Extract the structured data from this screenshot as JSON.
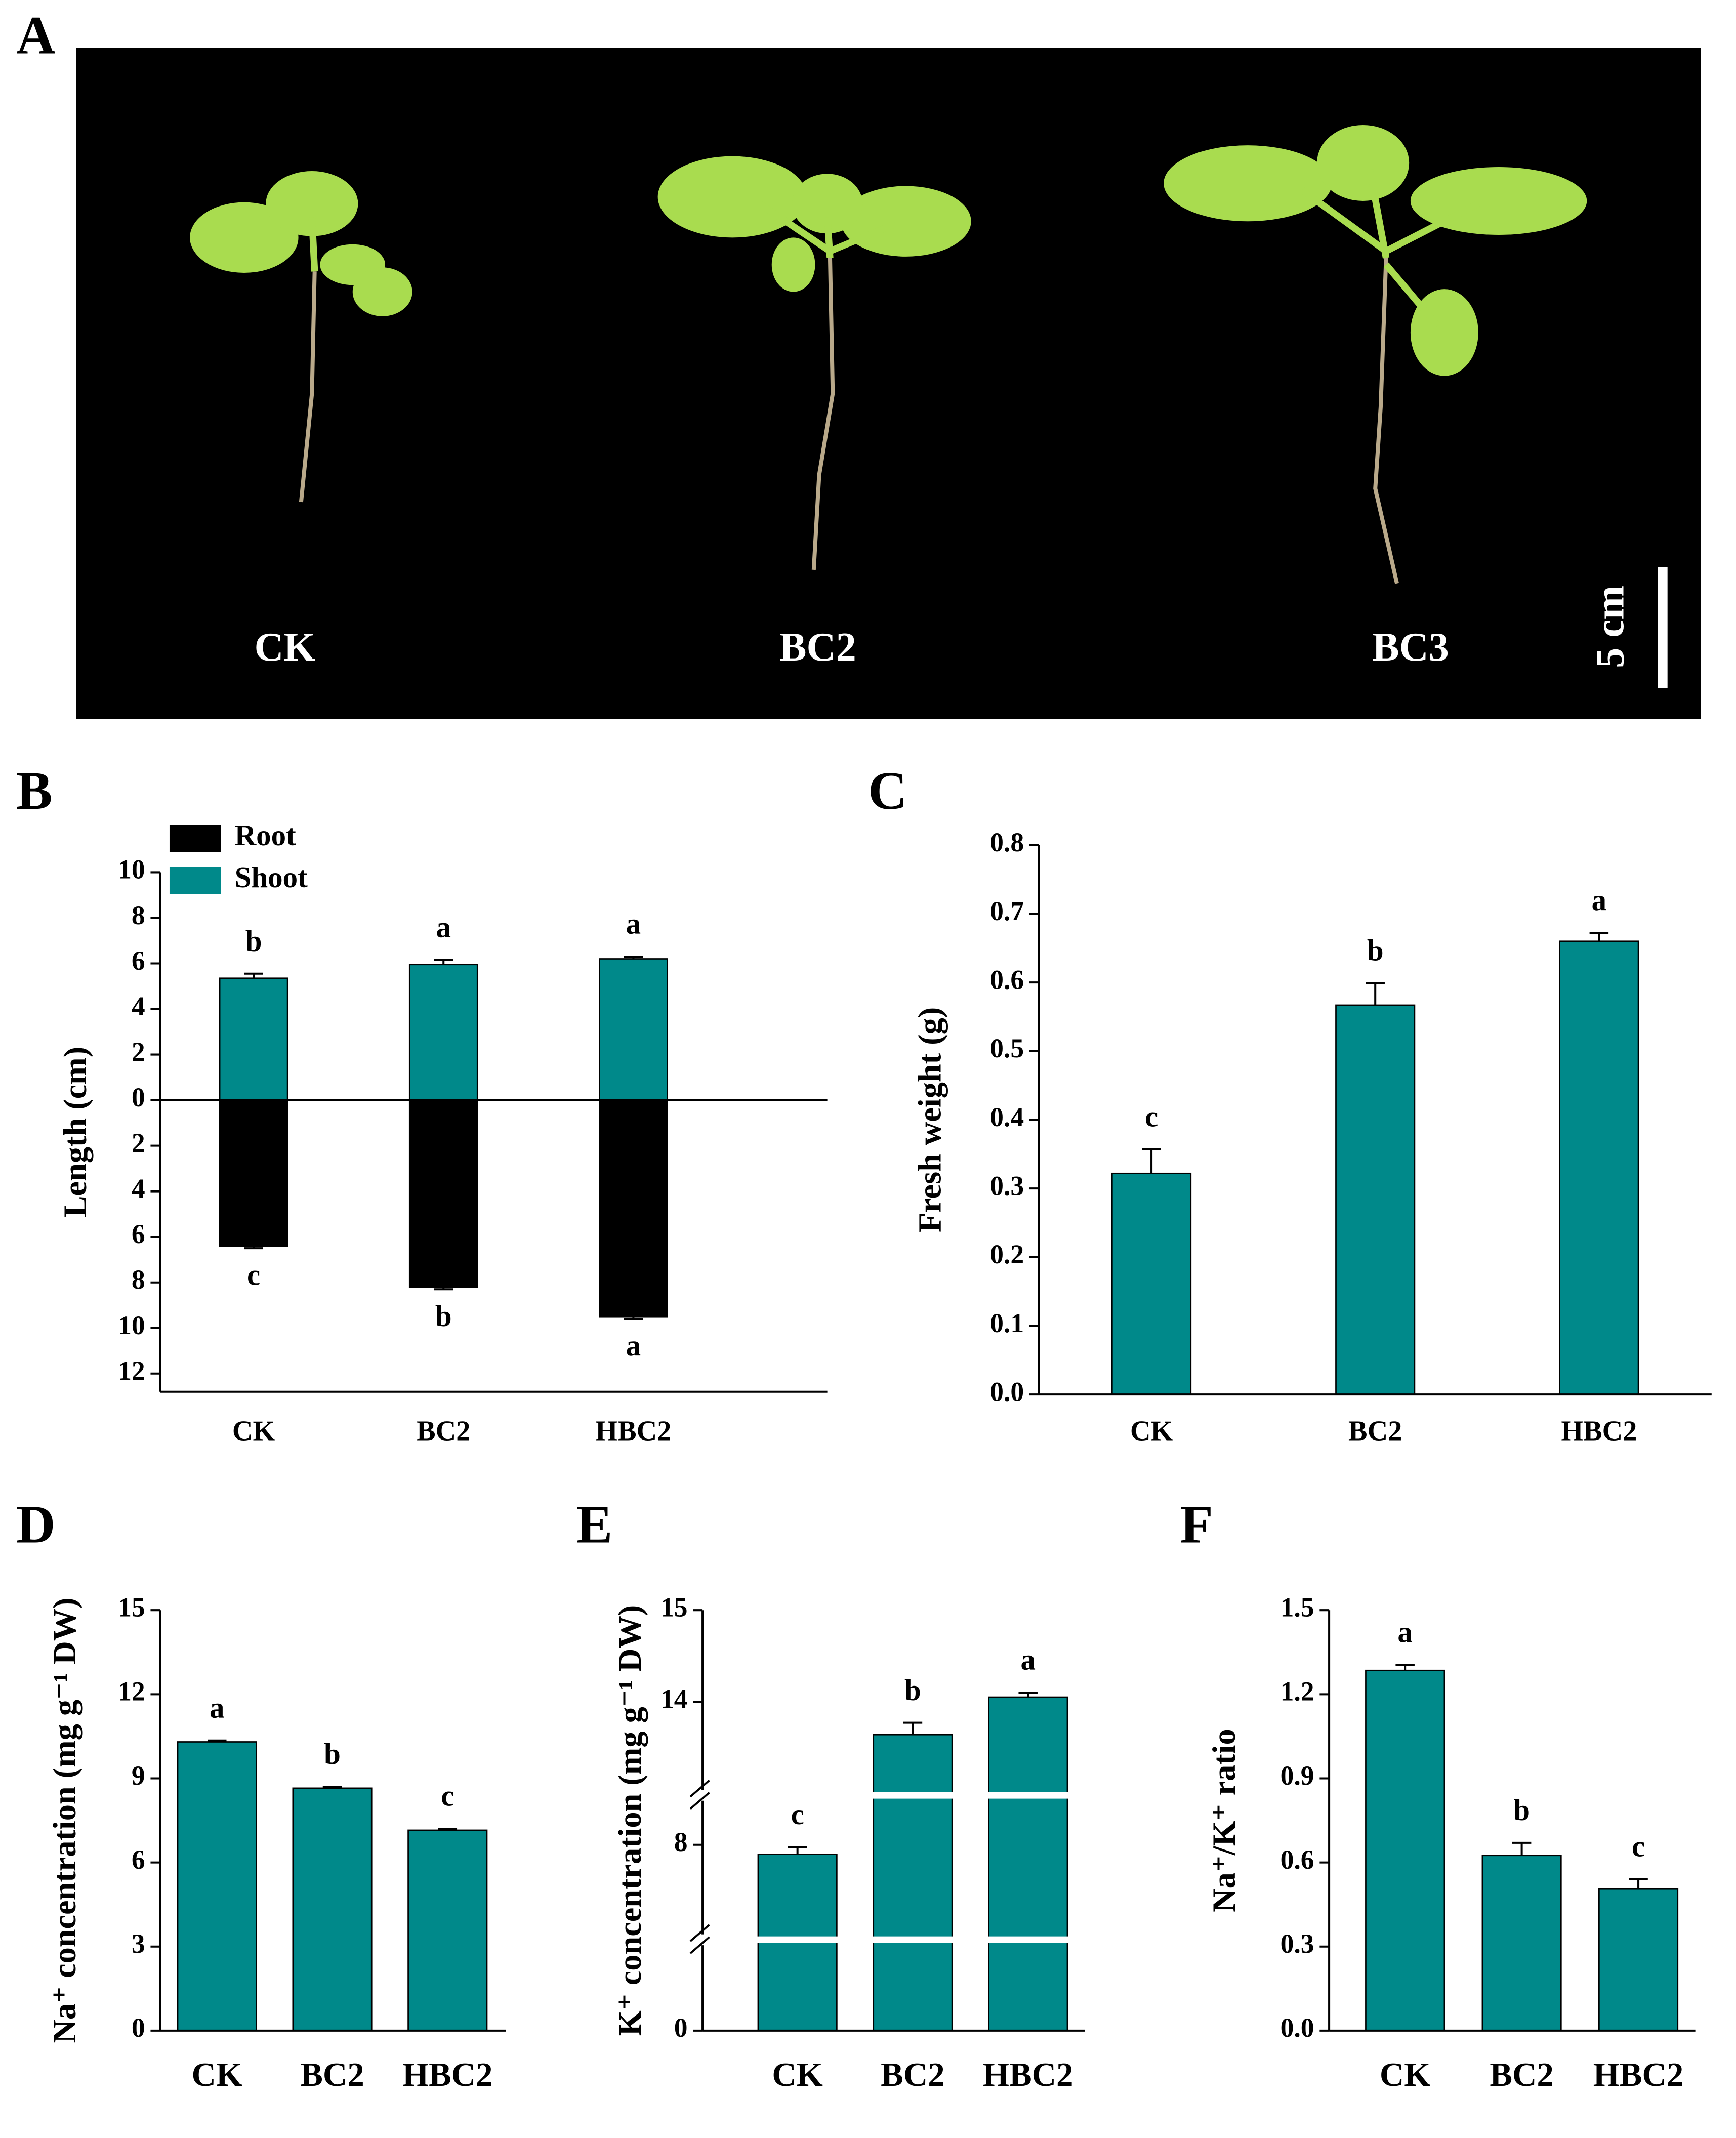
{
  "photo": {
    "panel": "A",
    "labels": [
      "CK",
      "BC2",
      "BC3"
    ],
    "scale_bar": "5 cm"
  },
  "chart_data": [
    {
      "type": "bar",
      "panel": "B",
      "ylabel": "Length (cm)",
      "categories": [
        "CK",
        "BC2",
        "HBC2"
      ],
      "ylim": [
        -12.8,
        10
      ],
      "yticks": [
        10,
        8,
        6,
        4,
        2,
        0,
        {
          "value": -2,
          "label": "2"
        },
        {
          "value": -4,
          "label": "4"
        },
        {
          "value": -6,
          "label": "6"
        },
        {
          "value": -8,
          "label": "8"
        },
        {
          "value": -10,
          "label": "10"
        },
        {
          "value": -12,
          "label": "12"
        }
      ],
      "legend": "upper left",
      "zero_line": true,
      "series": [
        {
          "name": "Root",
          "color": "#000000",
          "values": [
            -6.4,
            -8.2,
            -9.5
          ],
          "errors": [
            0.1,
            0.1,
            0.1
          ],
          "annotations": [
            "c",
            "b",
            "a"
          ]
        },
        {
          "name": "Shoot",
          "color": "#00898a",
          "values": [
            5.35,
            5.95,
            6.2
          ],
          "errors": [
            0.2,
            0.2,
            0.1
          ],
          "annotations": [
            "b",
            "a",
            "a"
          ]
        }
      ]
    },
    {
      "type": "bar",
      "panel": "C",
      "ylabel": "Fresh weight (g)",
      "categories": [
        "CK",
        "BC2",
        "HBC2"
      ],
      "values": [
        0.322,
        0.567,
        0.66
      ],
      "errors": [
        0.035,
        0.032,
        0.012
      ],
      "annotations": [
        "c",
        "b",
        "a"
      ],
      "color": "#00898a",
      "ylim": [
        0,
        0.8
      ],
      "yticks": [
        {
          "value": 0,
          "label": "0.0"
        },
        0.1,
        0.2,
        0.3,
        0.4,
        0.5,
        0.6,
        0.7,
        0.8
      ]
    },
    {
      "type": "bar",
      "panel": "D",
      "ylabel": "Na⁺ concentration (mg g⁻¹ DW)",
      "categories": [
        "CK",
        "BC2",
        "HBC2"
      ],
      "values": [
        10.3,
        8.65,
        7.15
      ],
      "errors": [
        0.05,
        0.05,
        0.05
      ],
      "annotations": [
        "a",
        "b",
        "c"
      ],
      "color": "#00898a",
      "ylim": [
        0,
        15
      ],
      "yticks": [
        0,
        3,
        6,
        9,
        12,
        15
      ]
    },
    {
      "type": "bar",
      "panel": "E",
      "ylabel": "K⁺ concentration (mg g⁻¹ DW)",
      "categories": [
        "CK",
        "BC2",
        "HBC2"
      ],
      "values": [
        7.8,
        13.64,
        14.05
      ],
      "errors": [
        0.15,
        0.13,
        0.05
      ],
      "annotations": [
        "c",
        "b",
        "a"
      ],
      "color": "#00898a",
      "ylim": [
        0,
        15
      ],
      "ysegments": [
        [
          0,
          6
        ],
        [
          6,
          9
        ],
        [
          13,
          15
        ]
      ],
      "yticks": [
        0,
        8,
        14,
        15
      ]
    },
    {
      "type": "bar",
      "panel": "F",
      "ylabel": "Na⁺/K⁺ ratio",
      "categories": [
        "CK",
        "BC2",
        "HBC2"
      ],
      "values": [
        1.285,
        0.625,
        0.505
      ],
      "errors": [
        0.02,
        0.045,
        0.035
      ],
      "annotations": [
        "a",
        "b",
        "c"
      ],
      "color": "#00898a",
      "ylim": [
        0,
        1.5
      ],
      "yticks": [
        {
          "value": 0,
          "label": "0.0"
        },
        0.3,
        0.6,
        0.9,
        1.2,
        1.5
      ]
    }
  ]
}
